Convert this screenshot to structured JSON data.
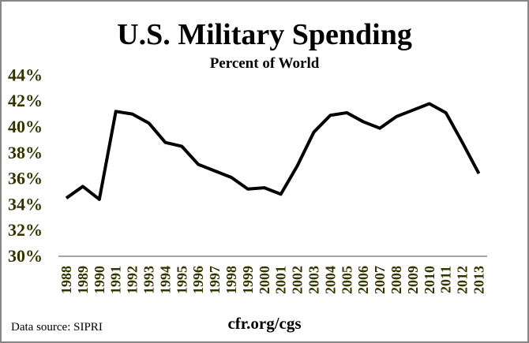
{
  "chart_data": {
    "type": "line",
    "title": "U.S. Military Spending",
    "subtitle": "Percent of World",
    "xlabel": "",
    "ylabel": "",
    "categories": [
      "1988",
      "1989",
      "1990",
      "1991",
      "1992",
      "1993",
      "1994",
      "1995",
      "1996",
      "1997",
      "1998",
      "1999",
      "2000",
      "2001",
      "2002",
      "2003",
      "2004",
      "2005",
      "2006",
      "2007",
      "2008",
      "2009",
      "2010",
      "2011",
      "2012",
      "2013"
    ],
    "values": [
      34.5,
      35.4,
      34.4,
      41.2,
      41.0,
      40.3,
      38.8,
      38.5,
      37.1,
      36.6,
      36.1,
      35.2,
      35.3,
      34.8,
      37.0,
      39.6,
      40.9,
      41.1,
      40.4,
      39.9,
      40.8,
      41.3,
      41.8,
      41.1,
      38.8,
      36.4
    ],
    "ylim": [
      30,
      44
    ],
    "yticks": [
      "30%",
      "32%",
      "34%",
      "36%",
      "38%",
      "40%",
      "42%",
      "44%"
    ],
    "grid": false,
    "legend": "none",
    "line_color": "#000000",
    "tick_label_color": "#333300"
  },
  "footer": {
    "source": "Data source: SIPRI",
    "credit": "cfr.org/cgs"
  }
}
